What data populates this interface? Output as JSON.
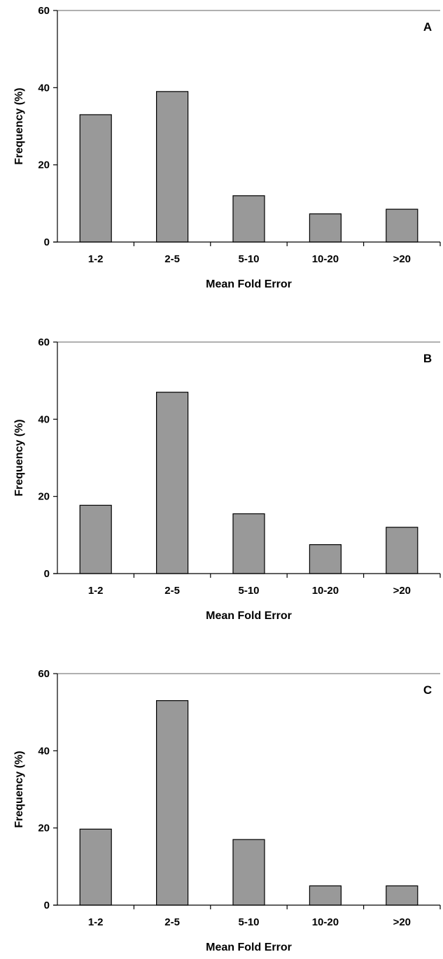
{
  "chart_data": [
    {
      "type": "bar",
      "panel_label": "A",
      "categories": [
        "1-2",
        "2-5",
        "5-10",
        "10-20",
        ">20"
      ],
      "values": [
        33,
        39,
        12,
        7.3,
        8.5
      ],
      "xlabel": "Mean Fold Error",
      "ylabel": "Frequency (%)",
      "ylim": [
        0,
        60
      ],
      "yticks": [
        "0",
        "20",
        "40",
        "60"
      ],
      "grid": false,
      "bar_color": "#999999"
    },
    {
      "type": "bar",
      "panel_label": "B",
      "categories": [
        "1-2",
        "2-5",
        "5-10",
        "10-20",
        ">20"
      ],
      "values": [
        17.7,
        47,
        15.5,
        7.5,
        12
      ],
      "xlabel": "Mean Fold Error",
      "ylabel": "Frequency (%)",
      "ylim": [
        0,
        60
      ],
      "yticks": [
        "0",
        "20",
        "40",
        "60"
      ],
      "grid": false,
      "bar_color": "#999999"
    },
    {
      "type": "bar",
      "panel_label": "C",
      "categories": [
        "1-2",
        "2-5",
        "5-10",
        "10-20",
        ">20"
      ],
      "values": [
        19.7,
        53,
        17,
        5,
        5
      ],
      "xlabel": "Mean Fold Error",
      "ylabel": "Frequency (%)",
      "ylim": [
        0,
        60
      ],
      "yticks": [
        "0",
        "20",
        "40",
        "60"
      ],
      "grid": false,
      "bar_color": "#999999"
    }
  ]
}
